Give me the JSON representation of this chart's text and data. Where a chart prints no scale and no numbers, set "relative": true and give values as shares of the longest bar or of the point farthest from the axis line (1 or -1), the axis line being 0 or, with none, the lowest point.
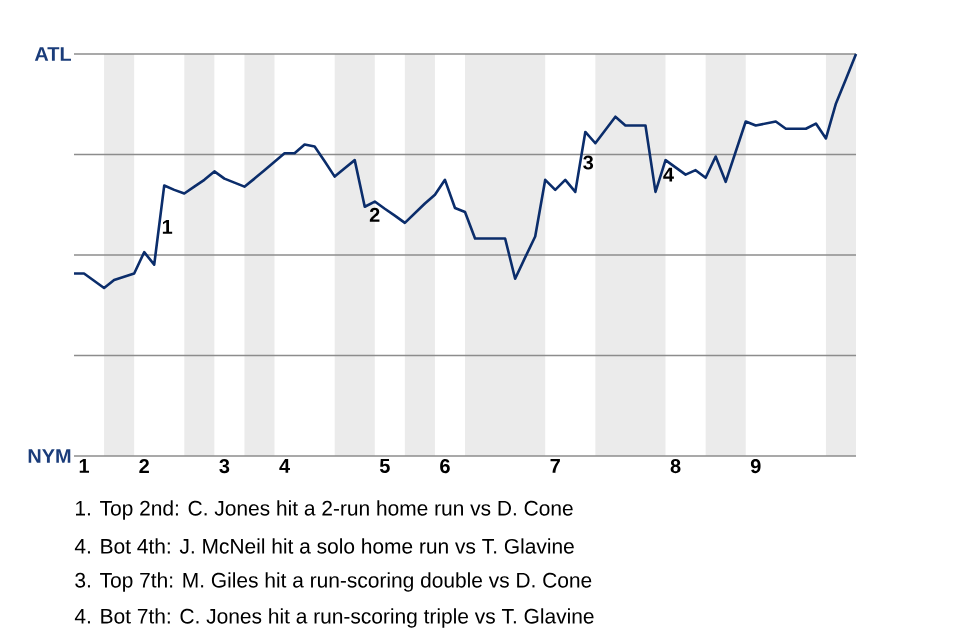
{
  "chart_data": {
    "type": "line",
    "relative": true,
    "categories": [
      null,
      "1",
      null,
      null,
      null,
      null,
      null,
      "2",
      null,
      null,
      null,
      null,
      null,
      null,
      null,
      "3",
      null,
      null,
      null,
      null,
      null,
      "4",
      null,
      null,
      null,
      null,
      null,
      null,
      null,
      null,
      null,
      "5",
      null,
      null,
      null,
      null,
      null,
      "6",
      null,
      null,
      null,
      null,
      null,
      null,
      null,
      null,
      null,
      null,
      "7",
      null,
      null,
      null,
      null,
      null,
      null,
      null,
      null,
      null,
      null,
      null,
      "8",
      null,
      null,
      null,
      null,
      null,
      null,
      null,
      "9",
      null,
      null,
      null,
      null,
      null,
      null,
      null,
      null,
      null,
      null
    ],
    "series": [
      {
        "color": "#0b2d6b",
        "values": [
          0.454,
          0.454,
          0.436,
          0.418,
          0.438,
          0.446,
          0.454,
          0.507,
          0.476,
          0.673,
          0.662,
          0.653,
          0.67,
          0.687,
          0.708,
          0.69,
          0.68,
          0.67,
          0.69,
          0.711,
          0.732,
          0.753,
          0.753,
          0.775,
          0.77,
          0.733,
          0.695,
          0.716,
          0.736,
          0.62,
          0.633,
          0.615,
          0.598,
          0.58,
          0.604,
          0.628,
          0.65,
          0.687,
          0.617,
          0.607,
          0.541,
          0.541,
          0.541,
          0.541,
          0.441,
          0.494,
          0.546,
          0.687,
          0.662,
          0.687,
          0.657,
          0.806,
          0.778,
          0.811,
          0.844,
          0.822,
          0.822,
          0.822,
          0.657,
          0.736,
          0.718,
          0.7,
          0.711,
          0.692,
          0.745,
          0.682,
          0.757,
          0.832,
          0.822,
          0.827,
          0.832,
          0.814,
          0.814,
          0.814,
          0.827,
          0.79,
          0.877,
          0.938,
          1.0
        ]
      }
    ],
    "ref_lines": [
      {
        "axis": "y",
        "value": 0,
        "label": "NYM",
        "color": "#8c8c8c"
      },
      {
        "axis": "y",
        "value": 0.25,
        "color": "#8c8c8c"
      },
      {
        "axis": "y",
        "value": 0.5,
        "color": "#8c8c8c"
      },
      {
        "axis": "y",
        "value": 0.75,
        "color": "#8c8c8c"
      },
      {
        "axis": "y",
        "value": 1,
        "label": "ATL",
        "color": "#8c8c8c"
      }
    ],
    "annotations": [
      "1",
      "2",
      "3",
      "4",
      "1. Top 2nd: C. Jones hit a 2-run home run vs D. Cone",
      "4. Bot 4th: J. McNeil hit a solo home run vs T. Glavine",
      "3. Top 7th: M. Giles hit a run-scoring double vs D. Cone",
      "4. Bot 7th: C. Jones hit a run-scoring triple vs T. Glavine"
    ]
  }
}
